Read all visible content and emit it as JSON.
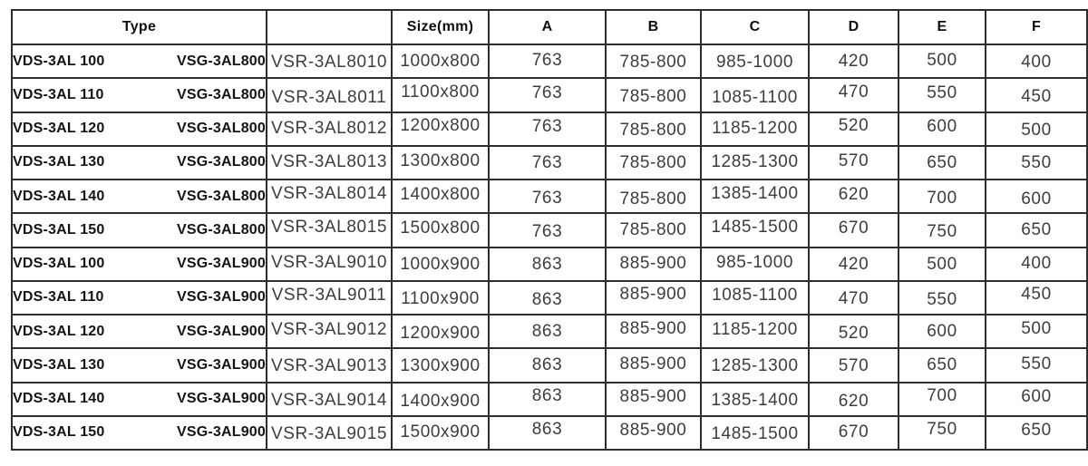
{
  "table": {
    "header": {
      "type_label": "Type",
      "model_label": "",
      "size_label": "Size(mm)",
      "dim_labels": [
        "A",
        "B",
        "C",
        "D",
        "E",
        "F"
      ]
    },
    "rows": [
      {
        "vds": "VDS-3AL 100",
        "vsg": "VSG-3AL800",
        "vsr": "VSR-3AL8010",
        "size": "1000x800",
        "a": "763",
        "b": "785-800",
        "c": "985-1000",
        "d": "420",
        "e": "500",
        "f": "400"
      },
      {
        "vds": "VDS-3AL 110",
        "vsg": "VSG-3AL800",
        "vsr": "VSR-3AL8011",
        "size": "1100x800",
        "a": "763",
        "b": "785-800",
        "c": "1085-1100",
        "d": "470",
        "e": "550",
        "f": "450"
      },
      {
        "vds": "VDS-3AL 120",
        "vsg": "VSG-3AL800",
        "vsr": "VSR-3AL8012",
        "size": "1200x800",
        "a": "763",
        "b": "785-800",
        "c": "1185-1200",
        "d": "520",
        "e": "600",
        "f": "500"
      },
      {
        "vds": "VDS-3AL 130",
        "vsg": "VSG-3AL800",
        "vsr": "VSR-3AL8013",
        "size": "1300x800",
        "a": "763",
        "b": "785-800",
        "c": "1285-1300",
        "d": "570",
        "e": "650",
        "f": "550"
      },
      {
        "vds": "VDS-3AL 140",
        "vsg": "VSG-3AL800",
        "vsr": "VSR-3AL8014",
        "size": "1400x800",
        "a": "763",
        "b": "785-800",
        "c": "1385-1400",
        "d": "620",
        "e": "700",
        "f": "600"
      },
      {
        "vds": "VDS-3AL 150",
        "vsg": "VSG-3AL800",
        "vsr": "VSR-3AL8015",
        "size": "1500x800",
        "a": "763",
        "b": "785-800",
        "c": "1485-1500",
        "d": "670",
        "e": "750",
        "f": "650"
      },
      {
        "vds": "VDS-3AL 100",
        "vsg": "VSG-3AL900",
        "vsr": "VSR-3AL9010",
        "size": "1000x900",
        "a": "863",
        "b": "885-900",
        "c": "985-1000",
        "d": "420",
        "e": "500",
        "f": "400"
      },
      {
        "vds": "VDS-3AL 110",
        "vsg": "VSG-3AL900",
        "vsr": "VSR-3AL9011",
        "size": "1100x900",
        "a": "863",
        "b": "885-900",
        "c": "1085-1100",
        "d": "470",
        "e": "550",
        "f": "450"
      },
      {
        "vds": "VDS-3AL 120",
        "vsg": "VSG-3AL900",
        "vsr": "VSR-3AL9012",
        "size": "1200x900",
        "a": "863",
        "b": "885-900",
        "c": "1185-1200",
        "d": "520",
        "e": "600",
        "f": "500"
      },
      {
        "vds": "VDS-3AL 130",
        "vsg": "VSG-3AL900",
        "vsr": "VSR-3AL9013",
        "size": "1300x900",
        "a": "863",
        "b": "885-900",
        "c": "1285-1300",
        "d": "570",
        "e": "650",
        "f": "550"
      },
      {
        "vds": "VDS-3AL 140",
        "vsg": "VSG-3AL900",
        "vsr": "VSR-3AL9014",
        "size": "1400x900",
        "a": "863",
        "b": "885-900",
        "c": "1385-1400",
        "d": "620",
        "e": "700",
        "f": "600"
      },
      {
        "vds": "VDS-3AL 150",
        "vsg": "VSG-3AL900",
        "vsr": "VSR-3AL9015",
        "size": "1500x900",
        "a": "863",
        "b": "885-900",
        "c": "1485-1500",
        "d": "670",
        "e": "750",
        "f": "650"
      }
    ],
    "colors": {
      "border": "#2d2d2d",
      "header_text": "#0f0f0f",
      "data_text": "#3d3d3d",
      "background": "#ffffff"
    }
  }
}
